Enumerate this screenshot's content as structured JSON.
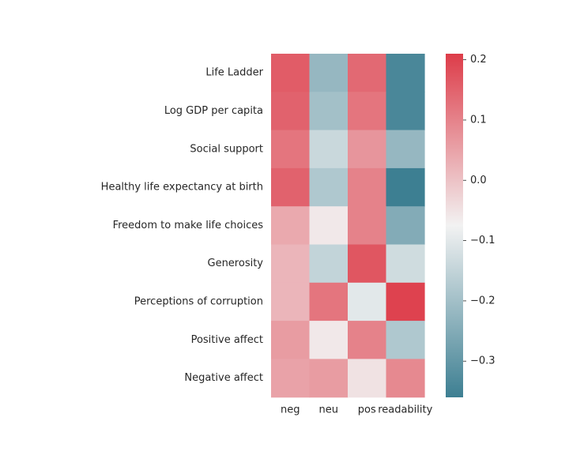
{
  "chart_data": {
    "type": "heatmap",
    "rows": [
      "Life Ladder",
      "Log GDP per capita",
      "Social support",
      "Healthy life expectancy at birth",
      "Freedom to make life choices",
      "Generosity",
      "Perceptions of corruption",
      "Positive affect",
      "Negative affect"
    ],
    "columns": [
      "neg",
      "neu",
      "pos",
      "readability"
    ],
    "values": [
      [
        0.16,
        -0.22,
        0.14,
        -0.34
      ],
      [
        0.15,
        -0.2,
        0.12,
        -0.34
      ],
      [
        0.12,
        -0.14,
        0.07,
        -0.22
      ],
      [
        0.15,
        -0.18,
        0.1,
        -0.36
      ],
      [
        0.04,
        -0.06,
        0.1,
        -0.25
      ],
      [
        0.02,
        -0.15,
        0.17,
        -0.13
      ],
      [
        0.02,
        0.12,
        -0.1,
        0.2
      ],
      [
        0.06,
        -0.06,
        0.1,
        -0.18
      ],
      [
        0.05,
        0.06,
        -0.05,
        0.09
      ]
    ],
    "colorbar": {
      "min": -0.36,
      "max": 0.21,
      "ticks": [
        0.2,
        0.1,
        0.0,
        -0.1,
        -0.2,
        -0.3
      ],
      "tick_labels": [
        "0.2",
        "0.1",
        "0.0",
        "−0.1",
        "−0.2",
        "−0.3"
      ],
      "palette_low": "#3d7f92",
      "palette_mid": "#f2f2f2",
      "palette_high": "#dd3c49"
    },
    "title": "",
    "xlabel": "",
    "ylabel": ""
  }
}
